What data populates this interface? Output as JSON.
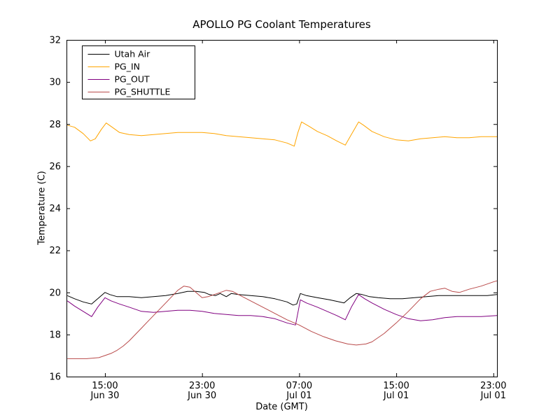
{
  "chart_data": {
    "type": "line",
    "title": "APOLLO PG Coolant Temperatures",
    "xlabel": "Date (GMT)",
    "ylabel": "Temperature (C)",
    "x_unit": "hours since Jun 30 00:00 GMT",
    "xlim": [
      11.83,
      47.3
    ],
    "ylim": [
      16,
      32
    ],
    "y_ticks": [
      16,
      18,
      20,
      22,
      24,
      26,
      28,
      30,
      32
    ],
    "x_ticks": [
      {
        "value": 15,
        "label": "15:00",
        "sub": "Jun 30"
      },
      {
        "value": 23,
        "label": "23:00",
        "sub": "Jun 30"
      },
      {
        "value": 31,
        "label": "07:00",
        "sub": "Jul 01"
      },
      {
        "value": 39,
        "label": "15:00",
        "sub": "Jul 01"
      },
      {
        "value": 47,
        "label": "23:00",
        "sub": "Jul 01"
      }
    ],
    "legend": {
      "visible": true,
      "position": "upper left"
    },
    "grid": false,
    "series": [
      {
        "name": "Utah Air",
        "color": "#000000",
        "x": [
          11.9,
          12.5,
          13.2,
          13.9,
          14.4,
          15.0,
          15.4,
          16,
          17,
          18,
          19,
          20,
          21,
          21.8,
          22.5,
          23.2,
          23.6,
          24.1,
          24.5,
          25.0,
          25.4,
          26,
          27,
          28,
          29,
          30,
          30.5,
          30.8,
          31.1,
          31.6,
          32.5,
          33.5,
          34.3,
          34.7,
          35.2,
          35.7,
          36.2,
          36.8,
          37.5,
          38.5,
          39.5,
          40.5,
          41.5,
          42.5,
          43.5,
          44.5,
          45.5,
          46.5,
          47.3
        ],
        "y": [
          19.85,
          19.7,
          19.55,
          19.45,
          19.7,
          20.0,
          19.9,
          19.8,
          19.8,
          19.75,
          19.8,
          19.85,
          19.95,
          20.05,
          20.05,
          20.0,
          19.9,
          19.85,
          19.95,
          19.8,
          19.95,
          19.9,
          19.85,
          19.8,
          19.7,
          19.55,
          19.4,
          19.45,
          19.95,
          19.85,
          19.75,
          19.65,
          19.55,
          19.5,
          19.75,
          19.95,
          19.9,
          19.8,
          19.75,
          19.7,
          19.7,
          19.75,
          19.8,
          19.85,
          19.85,
          19.85,
          19.85,
          19.85,
          19.9
        ]
      },
      {
        "name": "PG_IN",
        "color": "#ffa500",
        "x": [
          11.9,
          12.5,
          13.2,
          13.8,
          14.2,
          14.7,
          15.1,
          15.6,
          16.2,
          17,
          18,
          19,
          20,
          21,
          22,
          23,
          24,
          25,
          26,
          27,
          28,
          29,
          30,
          30.6,
          30.9,
          31.2,
          31.8,
          32.5,
          33.3,
          34.1,
          34.8,
          35.3,
          35.9,
          36.3,
          37,
          38,
          39,
          40,
          41,
          42,
          43,
          44,
          45,
          46,
          47.3
        ],
        "y": [
          27.95,
          27.85,
          27.55,
          27.2,
          27.3,
          27.75,
          28.05,
          27.85,
          27.6,
          27.5,
          27.45,
          27.5,
          27.55,
          27.6,
          27.6,
          27.6,
          27.55,
          27.45,
          27.4,
          27.35,
          27.3,
          27.25,
          27.1,
          26.95,
          27.6,
          28.1,
          27.9,
          27.65,
          27.45,
          27.2,
          27.0,
          27.5,
          28.1,
          27.95,
          27.65,
          27.4,
          27.25,
          27.2,
          27.3,
          27.35,
          27.4,
          27.35,
          27.35,
          27.4,
          27.4
        ]
      },
      {
        "name": "PG_OUT",
        "color": "#800080",
        "x": [
          11.9,
          12.5,
          13.2,
          13.9,
          14.4,
          15.0,
          15.5,
          16.2,
          17,
          18,
          19,
          20,
          21,
          22,
          23,
          24,
          25,
          26,
          27,
          28,
          29,
          30,
          30.7,
          31.1,
          31.6,
          32.5,
          33.3,
          34.1,
          34.8,
          35.3,
          35.9,
          36.4,
          37,
          38,
          39,
          40,
          41,
          42,
          43,
          44,
          45,
          46,
          47.3
        ],
        "y": [
          19.6,
          19.35,
          19.1,
          18.85,
          19.3,
          19.75,
          19.6,
          19.45,
          19.3,
          19.1,
          19.05,
          19.1,
          19.15,
          19.15,
          19.1,
          19.0,
          18.95,
          18.9,
          18.9,
          18.85,
          18.75,
          18.55,
          18.45,
          19.65,
          19.5,
          19.3,
          19.1,
          18.9,
          18.7,
          19.3,
          19.9,
          19.7,
          19.5,
          19.2,
          18.95,
          18.75,
          18.65,
          18.7,
          18.8,
          18.85,
          18.85,
          18.85,
          18.9
        ]
      },
      {
        "name": "PG_SHUTTLE",
        "color": "#b94a4a",
        "x": [
          11.9,
          12.5,
          13.5,
          14.5,
          15.0,
          15.5,
          16,
          16.5,
          17,
          17.5,
          18,
          18.5,
          19,
          19.5,
          20,
          20.5,
          21,
          21.5,
          22,
          22.5,
          23,
          23.5,
          24,
          24.5,
          25,
          25.5,
          26,
          27,
          28,
          29,
          30,
          31,
          32,
          33,
          34,
          35,
          35.7,
          36.5,
          37,
          38,
          39,
          40,
          41,
          41.8,
          42.5,
          43,
          43.6,
          44.2,
          45,
          46,
          47,
          47.3
        ],
        "y": [
          16.85,
          16.85,
          16.85,
          16.9,
          17.0,
          17.1,
          17.25,
          17.45,
          17.7,
          18.0,
          18.3,
          18.6,
          18.9,
          19.2,
          19.5,
          19.8,
          20.1,
          20.3,
          20.25,
          20.0,
          19.75,
          19.8,
          19.9,
          20.0,
          20.1,
          20.05,
          19.9,
          19.6,
          19.3,
          19.0,
          18.7,
          18.45,
          18.15,
          17.9,
          17.7,
          17.55,
          17.5,
          17.55,
          17.65,
          18.05,
          18.55,
          19.1,
          19.7,
          20.05,
          20.15,
          20.2,
          20.05,
          20.0,
          20.15,
          20.3,
          20.5,
          20.55
        ]
      }
    ]
  }
}
